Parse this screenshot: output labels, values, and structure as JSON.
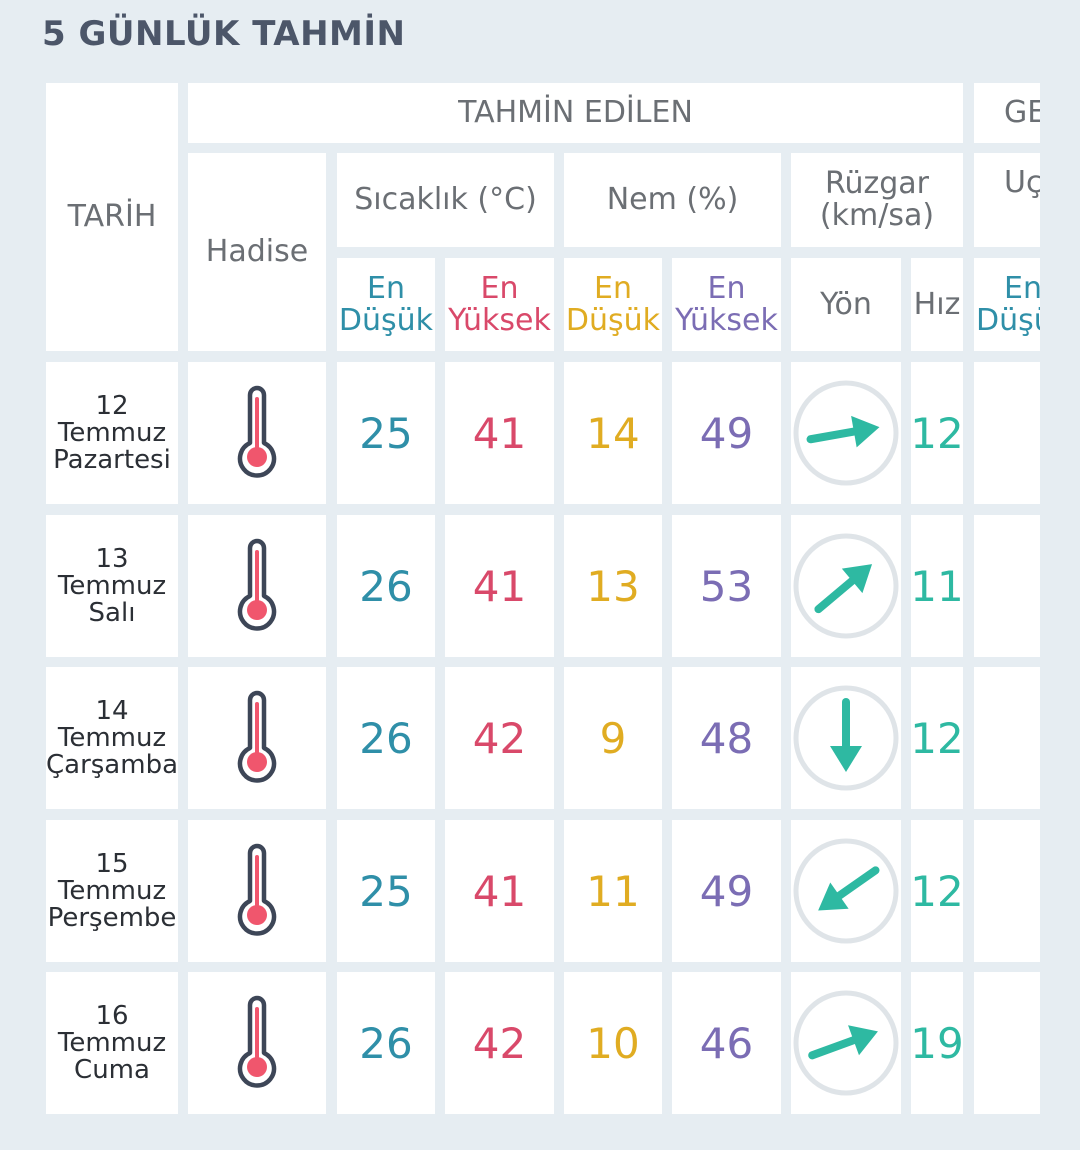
{
  "title": "5 GÜNLÜK TAHMİN",
  "headers": {
    "date": "TARİH",
    "event": "Hadise",
    "forecast": "TAHMİN EDİLEN",
    "next_group": "GE",
    "temp": "Sıcaklık (°C)",
    "humidity": "Nem (%)",
    "wind_line1": "Rüzgar",
    "wind_line2": "(km/sa)",
    "next_sub": "Uç",
    "en": "En",
    "lowest": "Düşük",
    "highest": "Yüksek",
    "next_lowest": "Düşü",
    "direction": "Yön",
    "speed": "Hız"
  },
  "colors": {
    "low": "#2f8fa8",
    "high": "#d9496a",
    "humidity_low": "#e0ac22",
    "humidity_high": "#7b6db4",
    "wind": "#2eb9a2"
  },
  "rows": [
    {
      "day": "12",
      "month": "Temmuz",
      "weekday": "Pazartesi",
      "icon": "thermometer-icon",
      "temp_low": "25",
      "temp_high": "41",
      "hum_low": "14",
      "hum_high": "49",
      "wind_dir_deg": -10,
      "wind_speed": "12"
    },
    {
      "day": "13",
      "month": "Temmuz",
      "weekday": "Salı",
      "icon": "thermometer-icon",
      "temp_low": "26",
      "temp_high": "41",
      "hum_low": "13",
      "hum_high": "53",
      "wind_dir_deg": -40,
      "wind_speed": "11"
    },
    {
      "day": "14",
      "month": "Temmuz",
      "weekday": "Çarşamba",
      "icon": "thermometer-icon",
      "temp_low": "26",
      "temp_high": "42",
      "hum_low": "9",
      "hum_high": "48",
      "wind_dir_deg": 90,
      "wind_speed": "12"
    },
    {
      "day": "15",
      "month": "Temmuz",
      "weekday": "Perşembe",
      "icon": "thermometer-icon",
      "temp_low": "25",
      "temp_high": "41",
      "hum_low": "11",
      "hum_high": "49",
      "wind_dir_deg": 145,
      "wind_speed": "12"
    },
    {
      "day": "16",
      "month": "Temmuz",
      "weekday": "Cuma",
      "icon": "thermometer-icon",
      "temp_low": "26",
      "temp_high": "42",
      "hum_low": "10",
      "hum_high": "46",
      "wind_dir_deg": -20,
      "wind_speed": "19"
    }
  ]
}
